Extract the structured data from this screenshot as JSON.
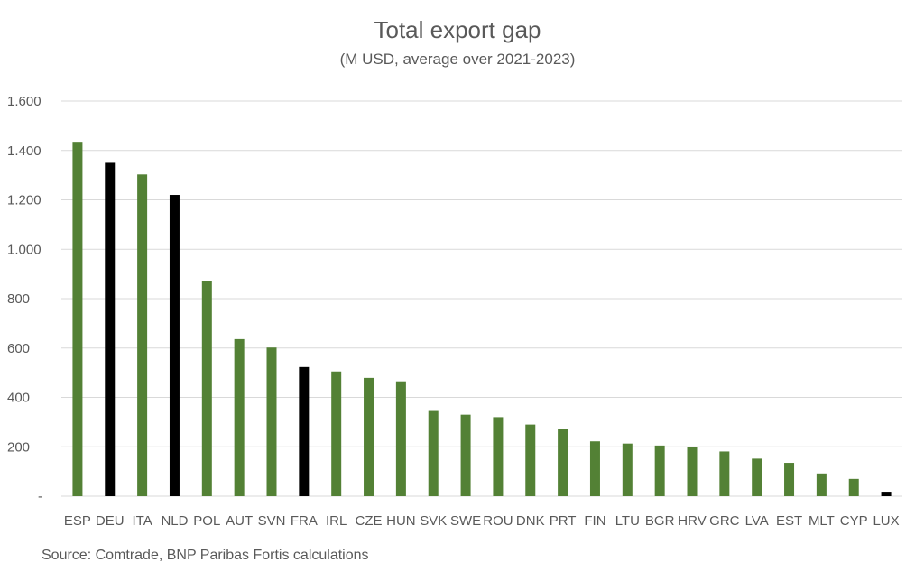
{
  "chart_data": {
    "type": "bar",
    "title": "Total export gap",
    "subtitle": "(M USD, average over 2021-2023)",
    "xlabel": "",
    "ylabel": "",
    "ylim": [
      0,
      1600
    ],
    "yticks": [
      {
        "value": 0,
        "label": "-"
      },
      {
        "value": 200,
        "label": "200"
      },
      {
        "value": 400,
        "label": "400"
      },
      {
        "value": 600,
        "label": "600"
      },
      {
        "value": 800,
        "label": "800"
      },
      {
        "value": 1000,
        "label": "1.000"
      },
      {
        "value": 1200,
        "label": "1.200"
      },
      {
        "value": 1400,
        "label": "1.400"
      },
      {
        "value": 1600,
        "label": "1.600"
      }
    ],
    "grid": true,
    "legend": "none",
    "colors": {
      "default": "#538135",
      "highlight": "#000000",
      "grid": "#d9d9d9"
    },
    "categories": [
      "ESP",
      "DEU",
      "ITA",
      "NLD",
      "POL",
      "AUT",
      "SVN",
      "FRA",
      "IRL",
      "CZE",
      "HUN",
      "SVK",
      "SWE",
      "ROU",
      "DNK",
      "PRT",
      "FIN",
      "LTU",
      "BGR",
      "HRV",
      "GRC",
      "LVA",
      "EST",
      "MLT",
      "CYP",
      "LUX"
    ],
    "values": [
      1435,
      1350,
      1303,
      1220,
      873,
      636,
      602,
      523,
      505,
      479,
      465,
      345,
      330,
      320,
      290,
      272,
      222,
      213,
      205,
      198,
      181,
      152,
      135,
      92,
      70,
      18
    ],
    "highlighted": [
      "DEU",
      "NLD",
      "FRA",
      "LUX"
    ]
  },
  "source": "Source: Comtrade, BNP Paribas Fortis calculations"
}
